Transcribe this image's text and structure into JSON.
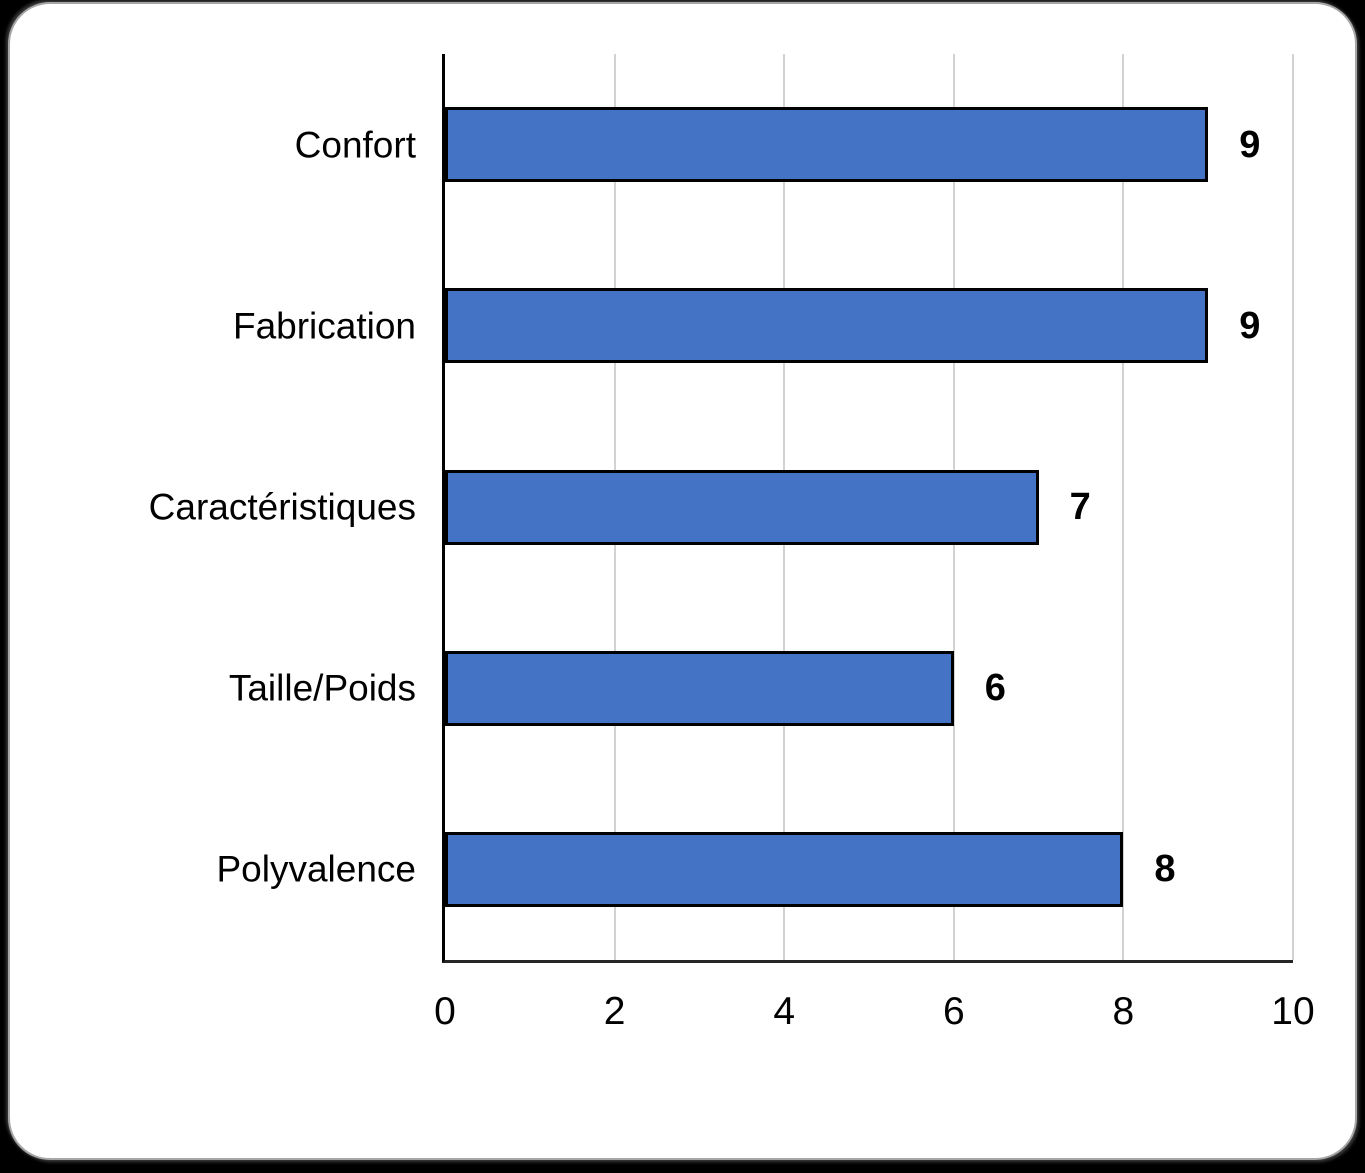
{
  "chart_data": {
    "type": "bar",
    "orientation": "horizontal",
    "title": "",
    "xlabel": "",
    "ylabel": "",
    "categories": [
      "Confort",
      "Fabrication",
      "Caractéristiques",
      "Taille/Poids",
      "Polyvalence"
    ],
    "values": [
      9,
      9,
      7,
      6,
      8
    ],
    "data_labels": [
      "9",
      "9",
      "7",
      "6",
      "8"
    ],
    "xlim": [
      0,
      10
    ],
    "xticks": [
      0,
      2,
      4,
      6,
      8,
      10
    ],
    "grid": "vertical-gridlines",
    "legend": "none",
    "bar_color": "#4472C4",
    "bar_border_color": "#000000",
    "gridline_color": "#d2d2d2",
    "axis_color": "#000000",
    "card_background": "#ffffff",
    "page_background": "#000000"
  }
}
